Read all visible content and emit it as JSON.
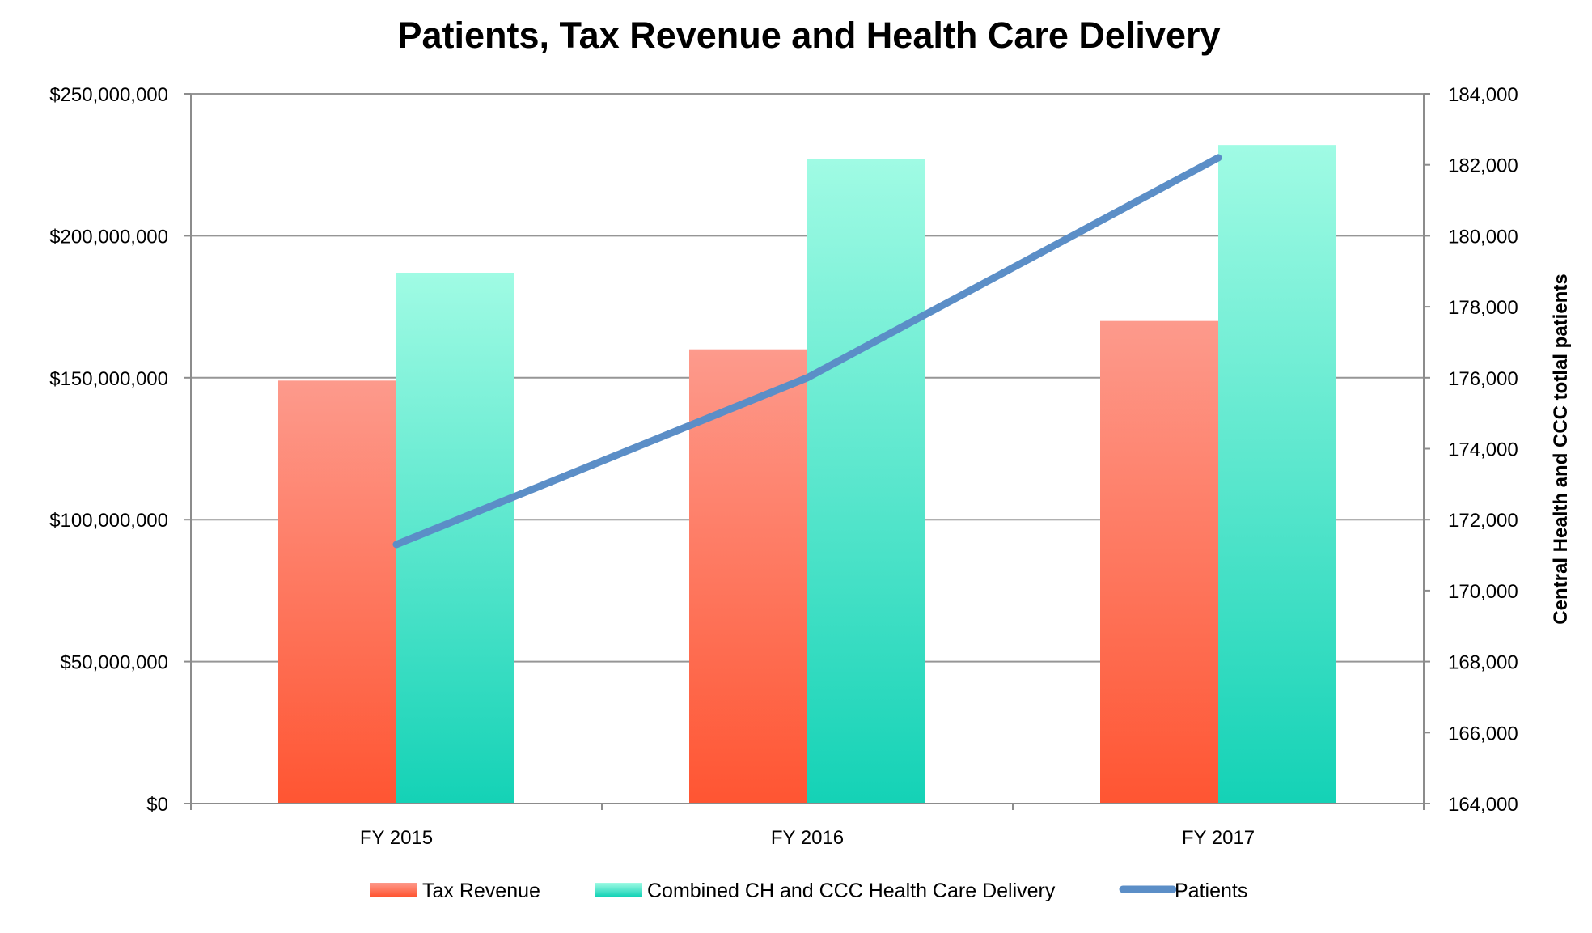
{
  "chart_data": {
    "type": "bar",
    "title": "Patients, Tax Revenue and Health Care Delivery",
    "categories": [
      "FY 2015",
      "FY 2016",
      "FY 2017"
    ],
    "series": [
      {
        "name": "Tax Revenue",
        "kind": "bar",
        "axis": "left",
        "values": [
          149000000,
          160000000,
          170000000
        ],
        "color_top": "#fd9a8c",
        "color_bottom": "#ff5532"
      },
      {
        "name": "Combined CH and CCC Health Care Delivery",
        "kind": "bar",
        "axis": "left",
        "values": [
          187000000,
          227000000,
          232000000
        ],
        "color_top": "#a0fbe4",
        "color_bottom": "#14d2b6"
      },
      {
        "name": "Patients",
        "kind": "line",
        "axis": "right",
        "values": [
          171300,
          176000,
          182200
        ],
        "color": "#5b8ec7"
      }
    ],
    "y_left": {
      "label": "",
      "ylim": [
        0,
        250000000
      ],
      "tick_labels": [
        "$0",
        "$50,000,000",
        "$100,000,000",
        "$150,000,000",
        "$200,000,000",
        "$250,000,000"
      ]
    },
    "y_right": {
      "label": "Central Health and CCC totlal patients",
      "ylim": [
        164000,
        184000
      ],
      "tick_labels": [
        "164,000",
        "166,000",
        "168,000",
        "170,000",
        "172,000",
        "174,000",
        "176,000",
        "178,000",
        "180,000",
        "182,000",
        "184,000"
      ]
    },
    "xlabel": "",
    "grid": true,
    "legend_position": "bottom"
  }
}
